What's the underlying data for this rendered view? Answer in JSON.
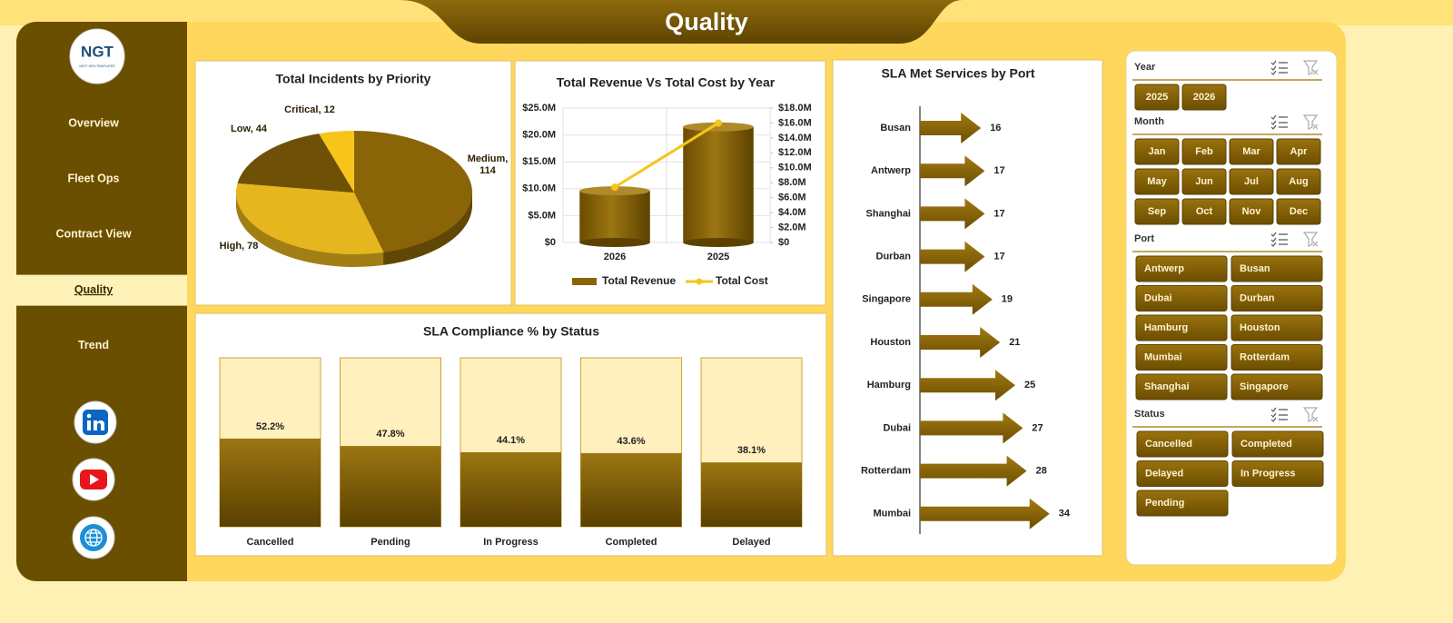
{
  "header": {
    "title": "Quality"
  },
  "logo": {
    "text": "NGT",
    "tagline": "NEXT GEN TEMPLATES"
  },
  "nav": [
    {
      "label": "Overview"
    },
    {
      "label": "Fleet Ops"
    },
    {
      "label": "Contract View"
    },
    {
      "label": "Quality",
      "active": true
    },
    {
      "label": "Trend"
    }
  ],
  "chart_data": [
    {
      "type": "pie",
      "title": "Total Incidents by Priority",
      "categories": [
        "Medium",
        "High",
        "Low",
        "Critical"
      ],
      "values": [
        114,
        78,
        44,
        12
      ],
      "value_labels": [
        "Medium, 114",
        "High, 78",
        "Low, 44",
        "Critical, 12"
      ],
      "colors": [
        "#8a6508",
        "#e6b61e",
        "#6e5006",
        "#f7c51a"
      ]
    },
    {
      "type": "bar",
      "title": "Total Revenue Vs Total Cost by Year",
      "categories": [
        "2026",
        "2025"
      ],
      "series": [
        {
          "name": "Total Revenue",
          "type": "bar",
          "color": "#8a6508",
          "values": [
            9600000,
            21500000
          ]
        },
        {
          "name": "Total Cost",
          "type": "line",
          "color": "#f5c518",
          "axis": "y2",
          "values": [
            7400000,
            16000000
          ]
        }
      ],
      "ylim": [
        0,
        25000000
      ],
      "yticks": [
        {
          "value": 0,
          "label": "$0"
        },
        {
          "value": 5000000,
          "label": "$5.0M"
        },
        {
          "value": 10000000,
          "label": "$10.0M"
        },
        {
          "value": 15000000,
          "label": "$15.0M"
        },
        {
          "value": 20000000,
          "label": "$20.0M"
        },
        {
          "value": 25000000,
          "label": "$25.0M"
        }
      ],
      "y2lim": [
        0,
        18000000
      ],
      "y2ticks": [
        {
          "value": 0,
          "label": "$0"
        },
        {
          "value": 2000000,
          "label": "$2.0M"
        },
        {
          "value": 4000000,
          "label": "$4.0M"
        },
        {
          "value": 6000000,
          "label": "$6.0M"
        },
        {
          "value": 8000000,
          "label": "$8.0M"
        },
        {
          "value": 10000000,
          "label": "$10.0M"
        },
        {
          "value": 12000000,
          "label": "$12.0M"
        },
        {
          "value": 14000000,
          "label": "$14.0M"
        },
        {
          "value": 16000000,
          "label": "$16.0M"
        },
        {
          "value": 18000000,
          "label": "$18.0M"
        }
      ],
      "grid": true,
      "legend": "bottom"
    },
    {
      "type": "bar",
      "orientation": "horizontal",
      "title": "SLA Met Services by Port",
      "categories": [
        "Busan",
        "Antwerp",
        "Shanghai",
        "Durban",
        "Singapore",
        "Houston",
        "Hamburg",
        "Dubai",
        "Rotterdam",
        "Mumbai"
      ],
      "values": [
        16,
        17,
        17,
        17,
        19,
        21,
        25,
        27,
        28,
        34
      ],
      "color": "#8a6508"
    },
    {
      "type": "bar",
      "title": "SLA Compliance % by Status",
      "categories": [
        "Cancelled",
        "Pending",
        "In Progress",
        "Completed",
        "Delayed"
      ],
      "values": [
        52.2,
        47.8,
        44.1,
        43.6,
        38.1
      ],
      "value_labels": [
        "52.2%",
        "47.8%",
        "44.1%",
        "43.6%",
        "38.1%"
      ],
      "color": "#8a6508"
    }
  ],
  "slicers": [
    {
      "title": "Year",
      "items": [
        "2025",
        "2026"
      ]
    },
    {
      "title": "Month",
      "items": [
        "Jan",
        "Feb",
        "Mar",
        "Apr",
        "May",
        "Jun",
        "Jul",
        "Aug",
        "Sep",
        "Oct",
        "Nov",
        "Dec"
      ]
    },
    {
      "title": "Port",
      "items": [
        "Antwerp",
        "Busan",
        "Dubai",
        "Durban",
        "Hamburg",
        "Houston",
        "Mumbai",
        "Rotterdam",
        "Shanghai",
        "Singapore"
      ]
    },
    {
      "title": "Status",
      "items": [
        "Cancelled",
        "Completed",
        "Delayed",
        "In Progress",
        "Pending"
      ]
    }
  ]
}
